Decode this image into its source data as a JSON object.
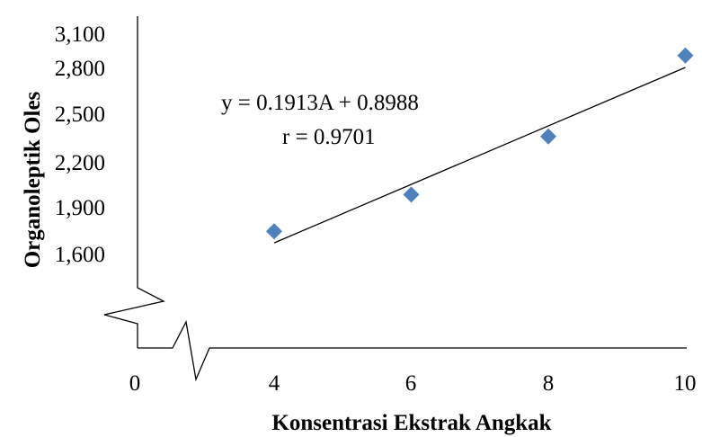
{
  "chart_data": {
    "type": "scatter",
    "xlabel": "Konsentrasi Ekstrak Angkak",
    "ylabel": "Organoleptik Oles",
    "x_ticks": [
      "0",
      "4",
      "6",
      "8",
      "10"
    ],
    "y_ticks": [
      "1,600",
      "1,900",
      "2,200",
      "2,500",
      "2,800",
      "3,100"
    ],
    "x": [
      4,
      6,
      8,
      10
    ],
    "y": [
      1.74,
      1.98,
      2.36,
      2.89
    ],
    "ylim": [
      1.6,
      3.1
    ],
    "xlim_shown": [
      4,
      10
    ],
    "axis_breaks": [
      "x",
      "y"
    ],
    "trendline": {
      "type": "linear",
      "slope": 0.1913,
      "intercept": 0.8988,
      "x_range": [
        4,
        10
      ]
    },
    "annotations": [
      "y = 0.1913A + 0.8988",
      "r = 0.9701"
    ],
    "grid": false,
    "legend": "none",
    "marker_color": "#4f81bd",
    "marker_shape": "diamond"
  }
}
